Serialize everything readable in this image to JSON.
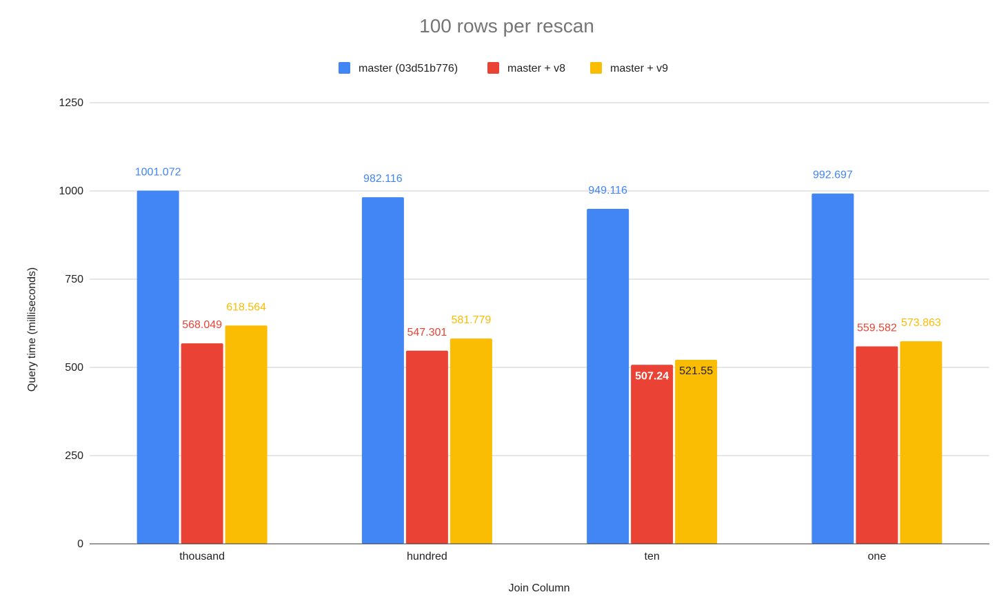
{
  "chart_data": {
    "type": "bar",
    "title": "100 rows per rescan",
    "xlabel": "Join Column",
    "ylabel": "Query time (milliseconds)",
    "ylim": [
      0,
      1250
    ],
    "yticks": [
      0,
      250,
      500,
      750,
      1000,
      1250
    ],
    "grid": true,
    "legend_position": "top-center",
    "categories": [
      "thousand",
      "hundred",
      "ten",
      "one"
    ],
    "series": [
      {
        "name": "master (03d51b776)",
        "color": "#4285f4",
        "values": [
          1001.072,
          982.116,
          949.116,
          992.697
        ],
        "label_color": "#4285f4"
      },
      {
        "name": "master + v8",
        "color": "#ea4335",
        "values": [
          568.049,
          547.301,
          507.24,
          559.582
        ],
        "label_color": "#ea4335"
      },
      {
        "name": "master + v9",
        "color": "#fbbc04",
        "values": [
          618.564,
          581.779,
          521.55,
          573.863
        ],
        "label_color": "#fbbc04"
      }
    ]
  }
}
